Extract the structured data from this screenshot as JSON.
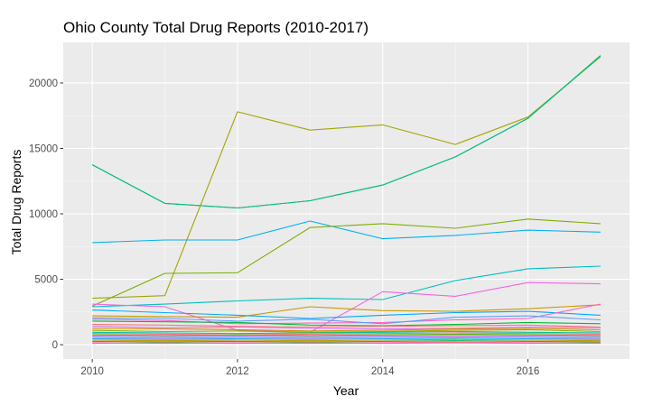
{
  "chart_data": {
    "type": "line",
    "title": "Ohio County Total Drug Reports (2010-2017)",
    "xlabel": "Year",
    "ylabel": "Total Drug Reports",
    "x": [
      2010,
      2011,
      2012,
      2013,
      2014,
      2015,
      2016,
      2017
    ],
    "xlim": [
      2009.6,
      2017.4
    ],
    "ylim": [
      -1100,
      23100
    ],
    "x_ticks": [
      2010,
      2012,
      2014,
      2016
    ],
    "x_tick_labels": [
      "2010",
      "2012",
      "2014",
      "2016"
    ],
    "y_ticks": [
      0,
      5000,
      10000,
      15000,
      20000
    ],
    "y_tick_labels": [
      "0",
      "5000",
      "10000",
      "15000",
      "20000"
    ],
    "grid": true,
    "legend": "none",
    "colors": {
      "panel": "#ebebeb",
      "grid_major": "#ffffff",
      "grid_minor": "#f7f7f7"
    },
    "series": [
      {
        "color": "#A3A500",
        "values": [
          3550,
          3750,
          17800,
          16400,
          16800,
          15300,
          17400,
          22000
        ]
      },
      {
        "color": "#39B600",
        "values": [
          13750,
          10800,
          10450,
          11000,
          12200,
          14350,
          17300,
          22100
        ]
      },
      {
        "color": "#00C08B",
        "values": [
          13750,
          10800,
          10450,
          11000,
          12200,
          14350,
          17300,
          22050
        ]
      },
      {
        "color": "#00B0F6",
        "values": [
          7800,
          8000,
          8000,
          9450,
          8100,
          8350,
          8750,
          8600
        ]
      },
      {
        "color": "#7CAE00",
        "values": [
          2950,
          5450,
          5500,
          8950,
          9250,
          8900,
          9600,
          9250
        ]
      },
      {
        "color": "#00BFC4",
        "values": [
          2900,
          3100,
          3350,
          3550,
          3450,
          4900,
          5800,
          6000
        ]
      },
      {
        "color": "#F564E3",
        "values": [
          3100,
          2900,
          1100,
          950,
          4050,
          3700,
          4750,
          4650
        ]
      },
      {
        "color": "#C49A00",
        "values": [
          2200,
          2150,
          2100,
          2900,
          2600,
          2550,
          2750,
          3050
        ]
      },
      {
        "color": "#00A9FF",
        "values": [
          2650,
          2450,
          2250,
          2000,
          2250,
          2450,
          2550,
          2250
        ]
      },
      {
        "color": "#FF61C3",
        "values": [
          1950,
          1850,
          1600,
          1650,
          1700,
          1900,
          2000,
          3100
        ]
      },
      {
        "color": "#619CFF",
        "values": [
          2050,
          2000,
          1800,
          1950,
          1600,
          2100,
          2200,
          1900
        ]
      },
      {
        "color": "#00BA38",
        "values": [
          1800,
          1750,
          1700,
          1500,
          1450,
          1550,
          1700,
          1600
        ]
      },
      {
        "color": "#F8766D",
        "values": [
          1550,
          1500,
          1400,
          1350,
          1400,
          1450,
          1500,
          1350
        ]
      },
      {
        "color": "#DB72FB",
        "values": [
          1400,
          1300,
          1350,
          1250,
          1200,
          1250,
          1350,
          1300
        ]
      },
      {
        "color": "#D39200",
        "values": [
          1250,
          1200,
          1150,
          1050,
          1100,
          1200,
          1250,
          1150
        ]
      },
      {
        "color": "#93AA00",
        "values": [
          1100,
          1000,
          1050,
          950,
          1000,
          1100,
          1150,
          1000
        ]
      },
      {
        "color": "#00C19F",
        "values": [
          950,
          900,
          850,
          900,
          950,
          1000,
          950,
          900
        ]
      },
      {
        "color": "#FF6C91",
        "values": [
          850,
          800,
          750,
          800,
          850,
          900,
          850,
          800
        ]
      },
      {
        "color": "#5EB300",
        "values": [
          750,
          700,
          750,
          700,
          750,
          800,
          750,
          700
        ]
      },
      {
        "color": "#9590FF",
        "values": [
          650,
          600,
          650,
          600,
          650,
          700,
          650,
          600
        ]
      },
      {
        "color": "#E76BF3",
        "values": [
          550,
          500,
          550,
          500,
          550,
          600,
          550,
          500
        ]
      },
      {
        "color": "#00B9E3",
        "values": [
          450,
          400,
          450,
          400,
          450,
          500,
          450,
          400
        ]
      },
      {
        "color": "#BB9D00",
        "values": [
          350,
          300,
          350,
          300,
          350,
          400,
          350,
          300
        ]
      },
      {
        "color": "#00BD5C",
        "values": [
          250,
          200,
          250,
          200,
          250,
          300,
          250,
          200
        ]
      },
      {
        "color": "#FF62BC",
        "values": [
          150,
          100,
          150,
          100,
          150,
          200,
          150,
          100
        ]
      },
      {
        "color": "#F8766D",
        "values": [
          100,
          150,
          100,
          150,
          100,
          150,
          100,
          150
        ]
      }
    ]
  }
}
